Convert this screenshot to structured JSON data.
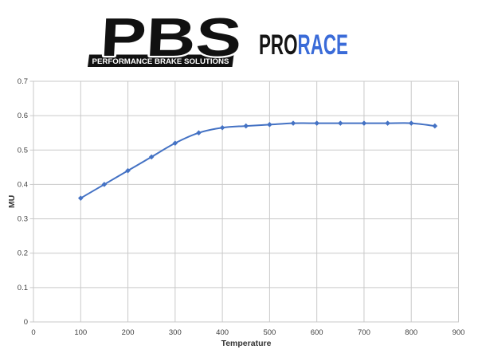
{
  "header": {
    "logo": {
      "acronym": "PBS",
      "tagline": "PERFORMANCE BRAKE SOLUTIONS",
      "product_black": "PRO",
      "product_blue": "RACE",
      "product_blue_color": "#3a6bd8",
      "logo_color": "#111111"
    }
  },
  "chart_data": {
    "type": "line",
    "title": "",
    "xlabel": "Temperature",
    "ylabel": "MU",
    "x": [
      100,
      150,
      200,
      250,
      300,
      350,
      400,
      450,
      500,
      550,
      600,
      650,
      700,
      750,
      800,
      850
    ],
    "values": [
      0.36,
      0.4,
      0.44,
      0.48,
      0.52,
      0.55,
      0.565,
      0.57,
      0.574,
      0.578,
      0.578,
      0.578,
      0.578,
      0.578,
      0.578,
      0.57
    ],
    "xlim": [
      0,
      900
    ],
    "ylim": [
      0,
      0.7
    ],
    "x_ticks": [
      "0",
      "100",
      "200",
      "300",
      "400",
      "500",
      "600",
      "700",
      "800",
      "900"
    ],
    "y_ticks": [
      "0",
      "0.1",
      "0.2",
      "0.3",
      "0.4",
      "0.5",
      "0.6",
      "0.7"
    ],
    "grid": true,
    "smooth": true,
    "marker": "diamond",
    "legend": "none",
    "series_color": "#4472c4",
    "gridline_color": "#c9c9c9",
    "tick_label_color": "#404040",
    "axis_title_color": "#333333"
  }
}
